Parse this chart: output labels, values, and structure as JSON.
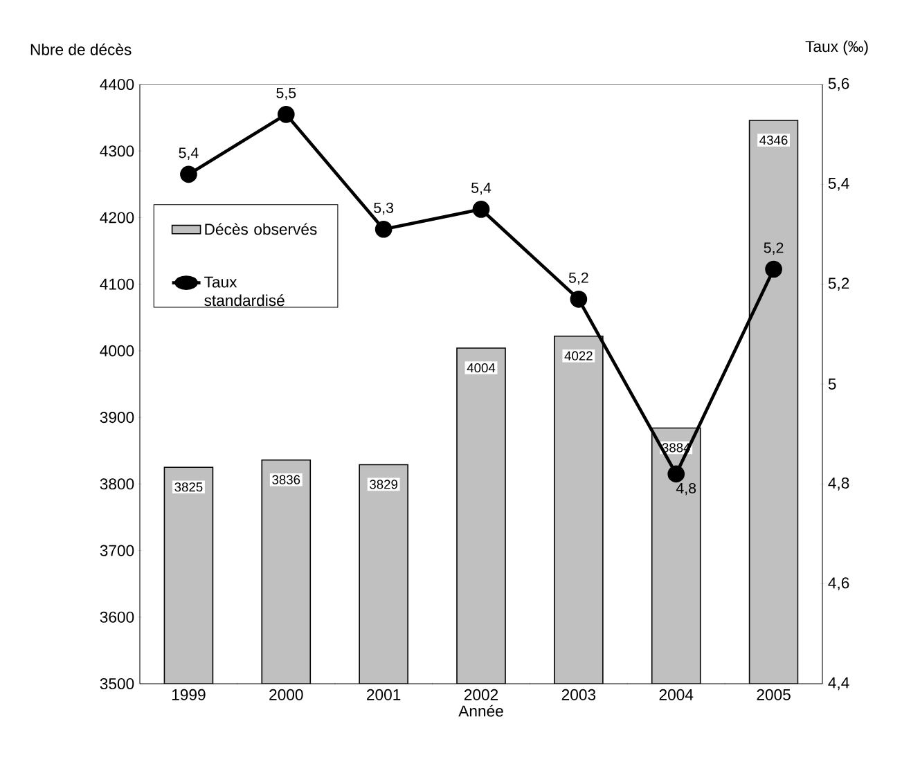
{
  "chart_data": {
    "type": "bar",
    "xlabel": "Année",
    "ylabel": "Nbre de décès",
    "y2label": "Taux (‰)",
    "categories": [
      "1999",
      "2000",
      "2001",
      "2002",
      "2003",
      "2004",
      "2005"
    ],
    "series": [
      {
        "name": "Décès observés",
        "color": "#c0c0c0",
        "values": [
          3825,
          3836,
          3829,
          4004,
          4022,
          3884,
          4346
        ],
        "value_labels": [
          "3825",
          "3836",
          "3829",
          "4004",
          "4022",
          "3884",
          "4346"
        ]
      },
      {
        "name": "Taux standardisé",
        "type": "line",
        "axis": "y2",
        "color": "#000000",
        "marker": "circle",
        "values": [
          5.42,
          5.54,
          5.31,
          5.35,
          5.17,
          4.82,
          5.23
        ],
        "value_labels": [
          "5,4",
          "5,5",
          "5,3",
          "5,4",
          "5,2",
          "4,8",
          "5,2"
        ]
      }
    ],
    "ylim": [
      3500,
      4400
    ],
    "yticks": [
      3500,
      3600,
      3700,
      3800,
      3900,
      4000,
      4100,
      4200,
      4300,
      4400
    ],
    "y2lim": [
      4.4,
      5.6
    ],
    "y2ticks": [
      {
        "value": 4.4,
        "label": "4,4"
      },
      {
        "value": 4.6,
        "label": "4,6"
      },
      {
        "value": 4.8,
        "label": "4,8"
      },
      5,
      {
        "value": 5.2,
        "label": "5,2"
      },
      {
        "value": 5.4,
        "label": "5,4"
      },
      {
        "value": 5.6,
        "label": "5,6"
      }
    ],
    "grid": false,
    "legend": "top left"
  }
}
